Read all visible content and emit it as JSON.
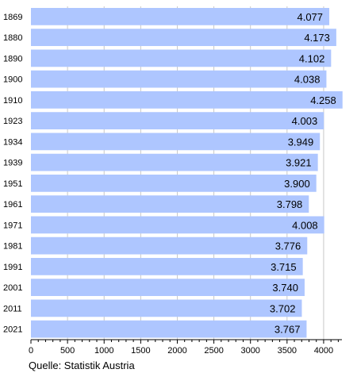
{
  "chart_data": {
    "type": "bar",
    "orientation": "horizontal",
    "categories": [
      "1869",
      "1880",
      "1890",
      "1900",
      "1910",
      "1923",
      "1934",
      "1939",
      "1951",
      "1961",
      "1971",
      "1981",
      "1991",
      "2001",
      "2011",
      "2021"
    ],
    "values": [
      4077,
      4173,
      4102,
      4038,
      4258,
      4003,
      3949,
      3921,
      3900,
      3798,
      4008,
      3776,
      3715,
      3740,
      3702,
      3767
    ],
    "value_labels": [
      "4.077",
      "4.173",
      "4.102",
      "4.038",
      "4.258",
      "4.003",
      "3.949",
      "3.921",
      "3.900",
      "3.798",
      "4.008",
      "3.776",
      "3.715",
      "3.740",
      "3.702",
      "3.767"
    ],
    "xlim": [
      0,
      4250
    ],
    "x_ticks": [
      0,
      500,
      1000,
      1500,
      2000,
      2500,
      3000,
      3500,
      4000
    ],
    "grid": "vertical",
    "title": "",
    "xlabel": "",
    "ylabel": "",
    "bar_color": "#aec6ff"
  },
  "source": "Quelle: Statistik Austria"
}
